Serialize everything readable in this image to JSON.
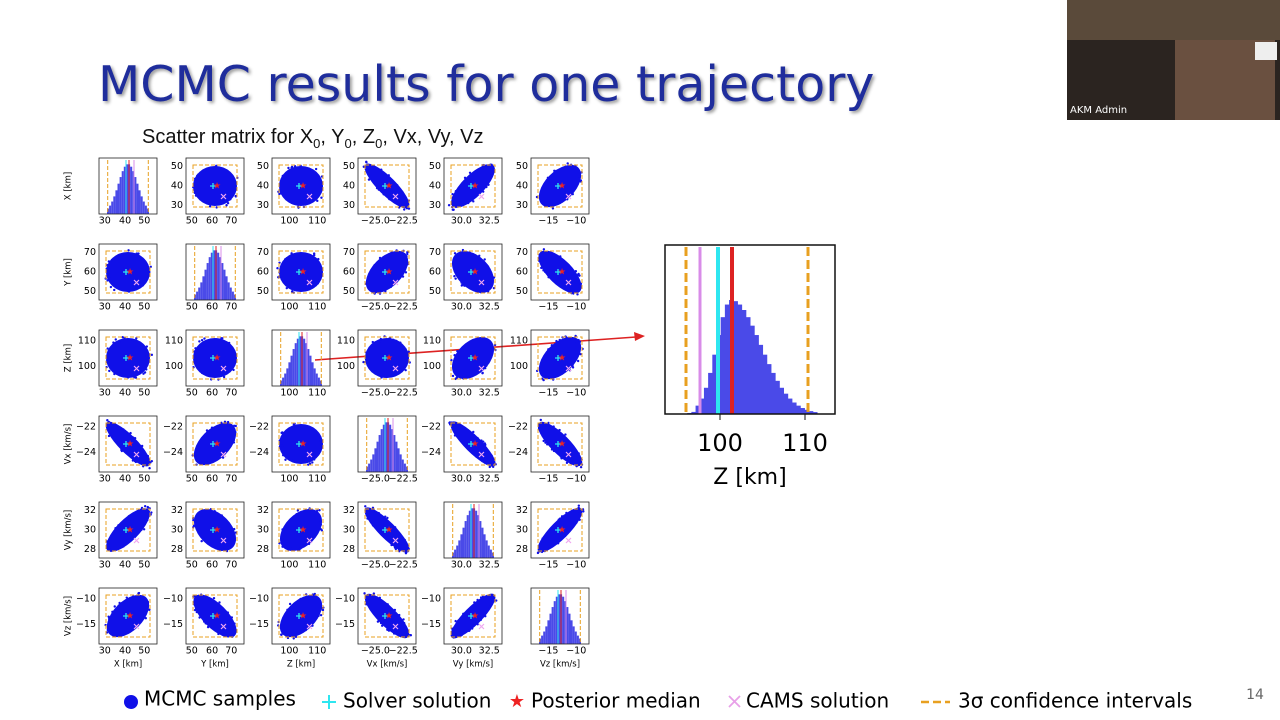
{
  "slide": {
    "title": "MCMC results for one trajectory",
    "subtitle": {
      "prefix": "Scatter matrix for",
      "separator": ", ",
      "variables": [
        {
          "name": "X",
          "sub": "0"
        },
        {
          "name": "Y",
          "sub": "0"
        },
        {
          "name": "Z",
          "sub": "0"
        },
        {
          "name": "Vx"
        },
        {
          "name": "Vy"
        },
        {
          "name": "Vz"
        }
      ]
    },
    "matrix": {
      "variables": [
        {
          "label": "X [km]",
          "xticks": [
            "30",
            "40",
            "50"
          ],
          "yticks": [
            "50",
            "40",
            "30"
          ]
        },
        {
          "label": "Y [km]",
          "xticks": [
            "50",
            "60",
            "70"
          ],
          "yticks": [
            "70",
            "60",
            "50"
          ]
        },
        {
          "label": "Z [km]",
          "xticks": [
            "100",
            "110"
          ],
          "yticks": [
            "110",
            "100"
          ]
        },
        {
          "label": "Vx [km/s]",
          "xticks": [
            "−25.0",
            "−22.5"
          ],
          "yticks": [
            "−22",
            "−24"
          ]
        },
        {
          "label": "Vy [km/s]",
          "xticks": [
            "30.0",
            "32.5"
          ],
          "yticks": [
            "32",
            "30",
            "28"
          ]
        },
        {
          "label": "Vz [km/s]",
          "xticks": [
            "−15",
            "−10"
          ],
          "yticks": [
            "−10",
            "−15"
          ]
        }
      ]
    },
    "zoom": {
      "xticks": [
        "100",
        "110"
      ],
      "xlabel": "Z [km]"
    },
    "legend": [
      "MCMC samples",
      "Solver solution",
      "Posterior median",
      "CAMS solution",
      "3σ confidence intervals"
    ],
    "page_number": "14"
  },
  "video": {
    "participant": "AKM Admin"
  }
}
